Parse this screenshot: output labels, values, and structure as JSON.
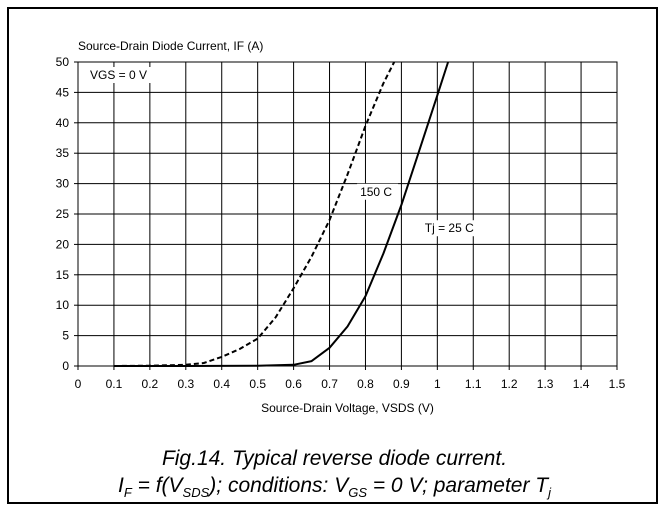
{
  "chart_data": {
    "type": "line",
    "ylabel": "Source-Drain Diode Current, IF (A)",
    "xlabel": "Source-Drain Voltage, VSDS (V)",
    "xlim": [
      0,
      1.5
    ],
    "ylim": [
      0,
      50
    ],
    "x_ticks": [
      "0",
      "0.1",
      "0.2",
      "0.3",
      "0.4",
      "0.5",
      "0.6",
      "0.7",
      "0.8",
      "0.9",
      "1",
      "1.1",
      "1.2",
      "1.3",
      "1.4",
      "1.5"
    ],
    "y_ticks": [
      "0",
      "5",
      "10",
      "15",
      "20",
      "25",
      "30",
      "35",
      "40",
      "45",
      "50"
    ],
    "grid": true,
    "annotations": {
      "condition": "VGS = 0 V"
    },
    "series": [
      {
        "name": "150 C",
        "style": "dashed",
        "color": "#000000",
        "x": [
          0.1,
          0.2,
          0.3,
          0.35,
          0.4,
          0.45,
          0.5,
          0.55,
          0.6,
          0.65,
          0.7,
          0.75,
          0.8,
          0.85,
          0.88
        ],
        "y": [
          0.0,
          0.05,
          0.2,
          0.5,
          1.5,
          2.8,
          4.5,
          8.0,
          12.8,
          18.0,
          24.0,
          31.5,
          39.5,
          46.5,
          50
        ]
      },
      {
        "name": "Tj = 25 C",
        "style": "solid",
        "color": "#000000",
        "x": [
          0.1,
          0.3,
          0.5,
          0.6,
          0.65,
          0.7,
          0.75,
          0.8,
          0.85,
          0.9,
          0.95,
          1.0,
          1.03
        ],
        "y": [
          0.0,
          0.0,
          0.05,
          0.2,
          0.8,
          3.0,
          6.5,
          11.5,
          18.5,
          26.5,
          35.5,
          44.5,
          50
        ]
      }
    ]
  },
  "caption": {
    "line1": "Fig.14.   Typical reverse diode current.",
    "line2": {
      "i": "I",
      "i_sub": "F",
      "eq": " = f(",
      "v": "V",
      "v_sub": "SDS",
      "mid": "); conditions: ",
      "vgs": "V",
      "vgs_sub": "GS",
      "vgs_val": " = 0 V; parameter ",
      "t": "T",
      "t_sub": "j"
    }
  }
}
